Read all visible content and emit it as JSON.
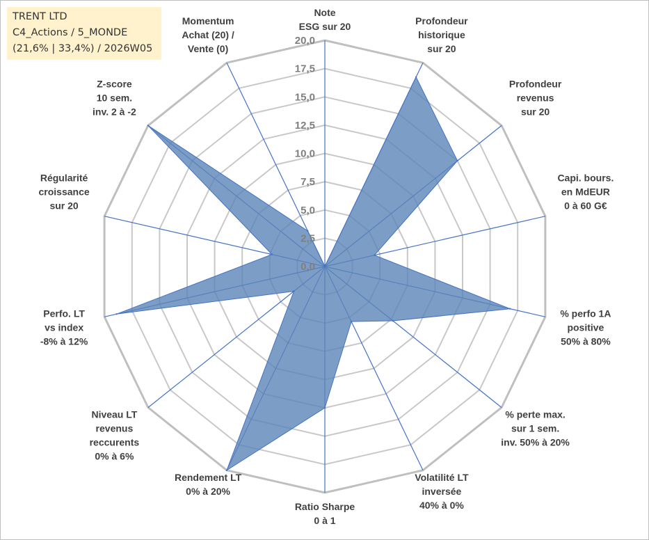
{
  "infobox": {
    "line1": "TRENT LTD",
    "line2": "C4_Actions / 5_MONDE",
    "line3": "(21,6% | 33,4%) / 2026W05"
  },
  "colors": {
    "fill": "#5b84b8",
    "fill_opacity": 0.8,
    "spoke": "#4472c4",
    "grid": "#c8c8c8",
    "outer_grid": "#bfbfbf",
    "infobox_bg": "#fff2cc"
  },
  "chart_data": {
    "type": "radar",
    "rmin": 0,
    "rmax": 20,
    "ticks": [
      "0,0",
      "2,5",
      "5,0",
      "7,5",
      "10,0",
      "12,5",
      "15,0",
      "17,5",
      "20,0"
    ],
    "categories": [
      {
        "lines": [
          "Note",
          "ESG sur 20"
        ]
      },
      {
        "lines": [
          "Profondeur",
          "historique",
          "sur 20"
        ]
      },
      {
        "lines": [
          "Profondeur",
          "revenus",
          "sur 20"
        ]
      },
      {
        "lines": [
          "Capi. bours.",
          "en MdEUR",
          "0 à 60 G€"
        ]
      },
      {
        "lines": [
          "% perfo 1A",
          "positive",
          "50% à 80%"
        ]
      },
      {
        "lines": [
          "% perte max.",
          "sur 1 sem.",
          "inv. 50% à 20%"
        ]
      },
      {
        "lines": [
          "Volatilité LT",
          "inversée",
          "40% à 0%"
        ]
      },
      {
        "lines": [
          "Ratio Sharpe",
          "0 à 1"
        ]
      },
      {
        "lines": [
          "Rendement LT",
          "0% à 20%"
        ]
      },
      {
        "lines": [
          "Niveau LT",
          "revenus",
          "reccurents",
          "0% à 6%"
        ]
      },
      {
        "lines": [
          "Perfo. LT",
          "vs index",
          "-8% à 12%"
        ]
      },
      {
        "lines": [
          "Régularité",
          "croissance",
          "sur 20"
        ]
      },
      {
        "lines": [
          "Z-score",
          "10 sem.",
          "inv. 2 à -2"
        ]
      },
      {
        "lines": [
          "Momentum",
          "Achat (20) /",
          "Vente (0)"
        ]
      }
    ],
    "series": [
      {
        "values": [
          0,
          18.6,
          15.0,
          4.5,
          16.8,
          7.7,
          5.4,
          12.5,
          20.0,
          3.5,
          18.9,
          4.8,
          20.0,
          3.5
        ]
      }
    ]
  }
}
